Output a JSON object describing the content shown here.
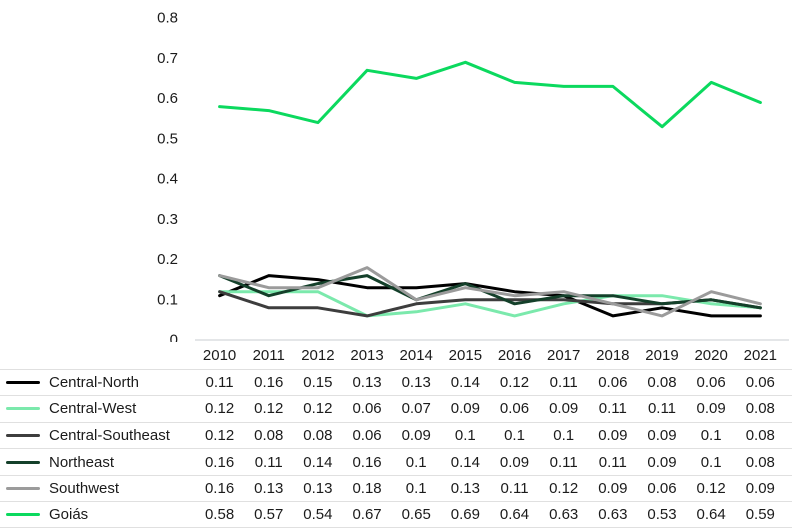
{
  "chart_data": {
    "type": "line",
    "title": "",
    "xlabel": "",
    "ylabel": "",
    "ylim": [
      0,
      0.8
    ],
    "yticks": [
      0.8,
      0.7,
      0.6,
      0.5,
      0.4,
      0.3,
      0.2,
      0.1,
      0
    ],
    "grid": false,
    "legend_position": "table-left",
    "x": [
      "2010",
      "2011",
      "2012",
      "2013",
      "2014",
      "2015",
      "2016",
      "2017",
      "2018",
      "2019",
      "2020",
      "2021"
    ],
    "series": [
      {
        "name": "Central-North",
        "color": "#000000",
        "values": [
          0.11,
          0.16,
          0.15,
          0.13,
          0.13,
          0.14,
          0.12,
          0.11,
          0.06,
          0.08,
          0.06,
          0.06
        ]
      },
      {
        "name": "Central-West",
        "color": "#7BE9AC",
        "values": [
          0.12,
          0.12,
          0.12,
          0.06,
          0.07,
          0.09,
          0.06,
          0.09,
          0.11,
          0.11,
          0.09,
          0.08
        ]
      },
      {
        "name": "Central-Southeast",
        "color": "#3d3d3d",
        "values": [
          0.12,
          0.08,
          0.08,
          0.06,
          0.09,
          0.1,
          0.1,
          0.1,
          0.09,
          0.09,
          0.1,
          0.08
        ]
      },
      {
        "name": "Northeast",
        "color": "#14402a",
        "values": [
          0.16,
          0.11,
          0.14,
          0.16,
          0.1,
          0.14,
          0.09,
          0.11,
          0.11,
          0.09,
          0.1,
          0.08
        ]
      },
      {
        "name": "Southwest",
        "color": "#9b9b9b",
        "values": [
          0.16,
          0.13,
          0.13,
          0.18,
          0.1,
          0.13,
          0.11,
          0.12,
          0.09,
          0.06,
          0.12,
          0.09
        ]
      },
      {
        "name": "Goiás",
        "color": "#0bd95e",
        "values": [
          0.58,
          0.57,
          0.54,
          0.67,
          0.65,
          0.69,
          0.64,
          0.63,
          0.63,
          0.53,
          0.64,
          0.59
        ]
      }
    ],
    "axis_color": "#c9cdd1",
    "text_color": "#1b1b1b"
  }
}
